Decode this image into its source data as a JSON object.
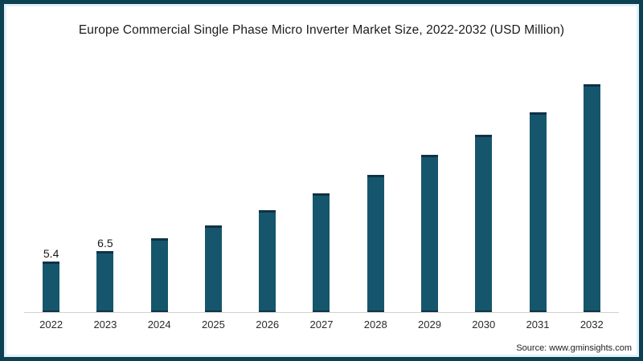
{
  "title": "Europe Commercial Single Phase Micro Inverter Market Size, 2022-2032 (USD Million)",
  "source": "Source: www.gminsights.com",
  "colors": {
    "frame_border": "#0c4052",
    "inner_border": "#e3f1f8",
    "bar_fill": "#16566d",
    "bar_cap": "#103245",
    "axis_line": "#d0d0d0",
    "text": "#1b1b1b"
  },
  "chart_data": {
    "type": "bar",
    "title": "Europe Commercial Single Phase Micro Inverter Market Size, 2022-2032 (USD Million)",
    "categories": [
      "2022",
      "2023",
      "2024",
      "2025",
      "2026",
      "2027",
      "2028",
      "2029",
      "2030",
      "2031",
      "2032"
    ],
    "values": [
      5.4,
      6.5,
      7.9,
      9.3,
      10.9,
      12.7,
      14.7,
      16.8,
      19.0,
      21.4,
      24.4
    ],
    "value_labels": [
      "5.4",
      "6.5",
      "",
      "",
      "",
      "",
      "",
      "",
      "",
      "",
      ""
    ],
    "xlabel": "",
    "ylabel": "",
    "ylim": [
      0,
      26
    ],
    "grid": false,
    "legend": false,
    "bar_color": "#16566d"
  }
}
